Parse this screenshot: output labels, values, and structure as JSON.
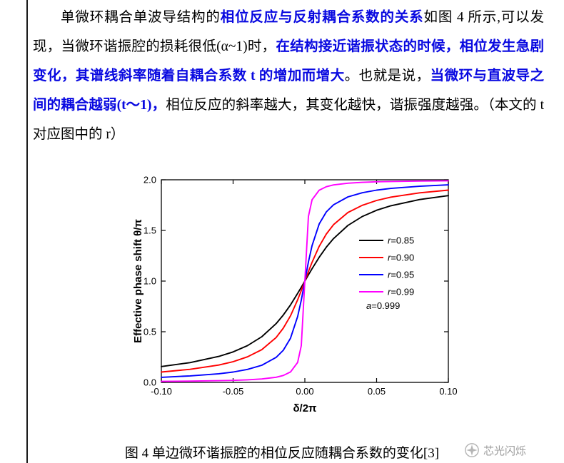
{
  "colors": {
    "body_text": "#000000",
    "highlight_blue": "#0909e0",
    "watermark_gray": "#9e9e9e",
    "series_black": "#000000",
    "series_red": "#ff0000",
    "series_blue": "#0000ff",
    "series_magenta": "#ff00ff"
  },
  "paragraph": {
    "segments": [
      {
        "style": "black",
        "text": "单微环耦合单波导结构的"
      },
      {
        "style": "blue",
        "text": "相位反应与反射耦合系数的关系"
      },
      {
        "style": "black",
        "text": "如图 4 所示,可以发现，当微环谐振腔的损耗很低(α~1)时，"
      },
      {
        "style": "blue",
        "text": "在结构接近谐振状态的时候，相位发生急剧变化，其谱线斜率随着自耦合系数 t 的增加而增大"
      },
      {
        "style": "black",
        "text": "。也就是说，"
      },
      {
        "style": "blue",
        "text": "当微环与直波导之间的耦合越弱(t～1)，"
      },
      {
        "style": "black",
        "text": "相位反应的斜率越大，其变化越快，谐振强度越强。（本文的 t 对应图中的 r）"
      }
    ]
  },
  "chart_data": {
    "type": "line",
    "title": "",
    "xlabel": "δ/2π",
    "ylabel": "Effective phase shift θ/π",
    "xlim": [
      -0.1,
      0.1
    ],
    "ylim": [
      0.0,
      2.0
    ],
    "grid": false,
    "legend_position": "right-center",
    "xticks": [
      "-0.10",
      "-0.05",
      "0.00",
      "0.05",
      "0.10"
    ],
    "yticks": [
      "0.0",
      "0.5",
      "1.0",
      "1.5",
      "2.0"
    ],
    "x": [
      -0.1,
      -0.08,
      -0.06,
      -0.05,
      -0.04,
      -0.03,
      -0.02,
      -0.015,
      -0.01,
      -0.005,
      -0.0025,
      0,
      0.0025,
      0.005,
      0.01,
      0.015,
      0.02,
      0.03,
      0.04,
      0.05,
      0.06,
      0.08,
      0.1
    ],
    "series": [
      {
        "name": "r=0.85",
        "color": "#000000",
        "values": [
          0.156,
          0.195,
          0.256,
          0.301,
          0.363,
          0.451,
          0.58,
          0.665,
          0.765,
          0.878,
          0.939,
          1.0,
          1.061,
          1.122,
          1.235,
          1.335,
          1.42,
          1.549,
          1.637,
          1.699,
          1.744,
          1.805,
          1.844
        ]
      },
      {
        "name": "r=0.90",
        "color": "#ff0000",
        "values": [
          0.102,
          0.129,
          0.171,
          0.204,
          0.252,
          0.323,
          0.443,
          0.535,
          0.657,
          0.815,
          0.906,
          1.0,
          1.094,
          1.185,
          1.343,
          1.465,
          1.557,
          1.677,
          1.748,
          1.796,
          1.829,
          1.871,
          1.898
        ]
      },
      {
        "name": "r=0.95",
        "color": "#0000ff",
        "values": [
          0.05,
          0.064,
          0.085,
          0.102,
          0.128,
          0.169,
          0.247,
          0.317,
          0.436,
          0.65,
          0.811,
          1.0,
          1.189,
          1.35,
          1.564,
          1.683,
          1.753,
          1.831,
          1.872,
          1.898,
          1.915,
          1.936,
          1.95
        ]
      },
      {
        "name": "r=0.99",
        "color": "#ff00ff",
        "values": [
          0.01,
          0.013,
          0.017,
          0.02,
          0.025,
          0.034,
          0.051,
          0.068,
          0.103,
          0.197,
          0.362,
          1.0,
          1.638,
          1.803,
          1.897,
          1.932,
          1.949,
          1.966,
          1.975,
          1.98,
          1.983,
          1.987,
          1.99
        ]
      }
    ],
    "legend": {
      "items": [
        {
          "var": "r",
          "rest": "=0.85",
          "color": "#000000"
        },
        {
          "var": "r",
          "rest": "=0.90",
          "color": "#ff0000"
        },
        {
          "var": "r",
          "rest": "=0.95",
          "color": "#0000ff"
        },
        {
          "var": "r",
          "rest": "=0.99",
          "color": "#ff00ff"
        }
      ],
      "annotation": {
        "var": "a",
        "rest": "=0.999"
      }
    }
  },
  "caption": {
    "text": "图 4  单边微环谐振腔的相位反应随耦合系数的变化[3]"
  },
  "watermark": {
    "text": "芯光闪烁"
  }
}
